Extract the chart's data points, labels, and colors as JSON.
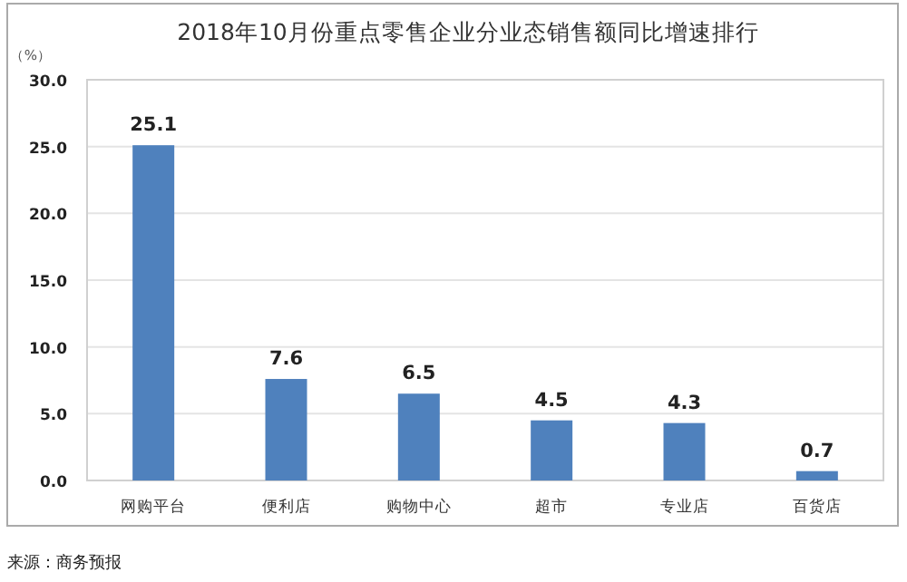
{
  "chart_data": {
    "type": "bar",
    "title": "2018年10月份重点零售企业分业态销售额同比增速排行",
    "ylabel": "（%）",
    "categories": [
      "网购平台",
      "便利店",
      "购物中心",
      "超市",
      "专业店",
      "百货店"
    ],
    "values": [
      25.1,
      7.6,
      6.5,
      4.5,
      4.3,
      0.7
    ],
    "color": "#4f81bd",
    "ylim": [
      0,
      30
    ],
    "yticks": [
      {
        "value": 0,
        "label": "0.0"
      },
      {
        "value": 5,
        "label": "5.0"
      },
      {
        "value": 10,
        "label": "10.0"
      },
      {
        "value": 15,
        "label": "15.0"
      },
      {
        "value": 20,
        "label": "20.0"
      },
      {
        "value": 25,
        "label": "25.0"
      },
      {
        "value": 30,
        "label": "30.0"
      }
    ],
    "grid": "y",
    "data_labels": true,
    "annotations": [
      "来源：商务预报"
    ]
  }
}
